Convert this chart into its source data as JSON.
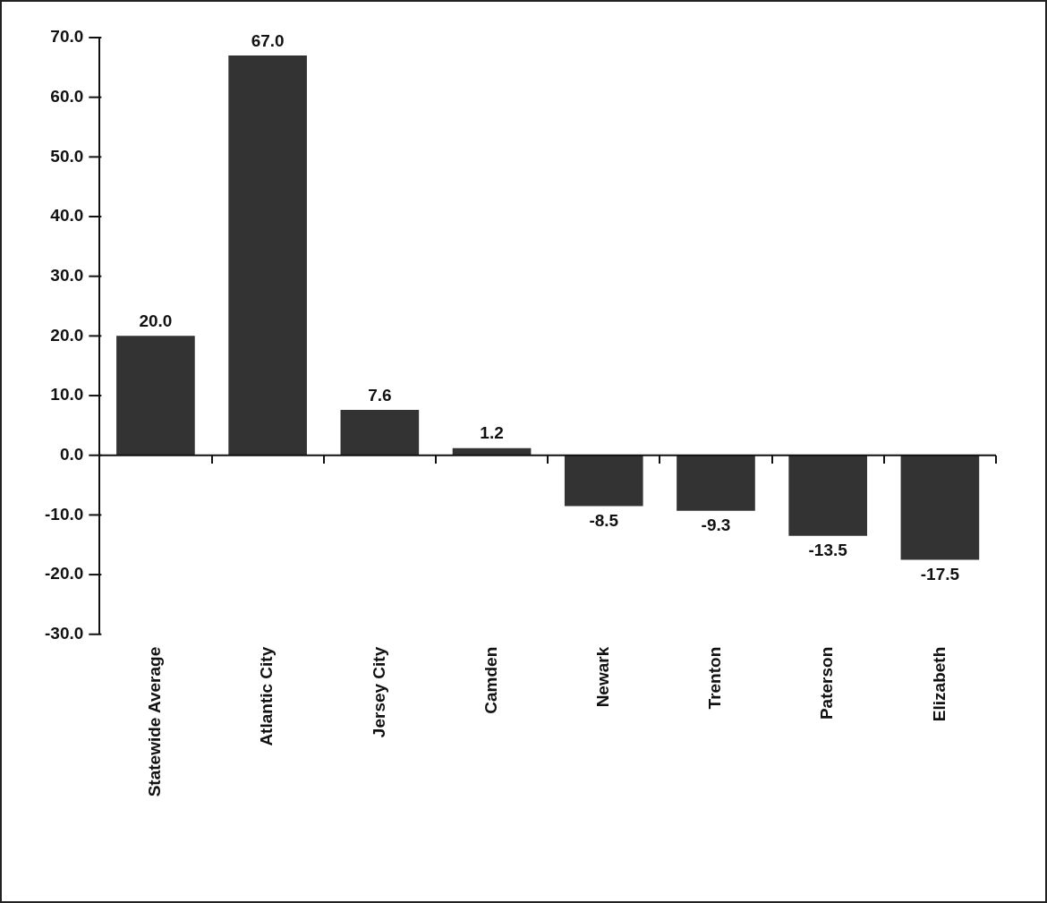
{
  "chart_data": {
    "type": "bar",
    "categories": [
      "Statewide Average",
      "Atlantic City",
      "Jersey City",
      "Camden",
      "Newark",
      "Trenton",
      "Paterson",
      "Elizabeth"
    ],
    "values": [
      20.0,
      67.0,
      7.6,
      1.2,
      -8.5,
      -9.3,
      -13.5,
      -17.5
    ],
    "value_labels": [
      "20.0",
      "67.0",
      "7.6",
      "1.2",
      "-8.5",
      "-9.3",
      "-13.5",
      "-17.5"
    ],
    "color": "#333333",
    "ylim": [
      -30,
      70
    ],
    "yticks": [
      {
        "value": -30,
        "label": "-30.0"
      },
      {
        "value": -20,
        "label": "-20.0"
      },
      {
        "value": -10,
        "label": "-10.0"
      },
      {
        "value": 0,
        "label": "0.0"
      },
      {
        "value": 10,
        "label": "10.0"
      },
      {
        "value": 20,
        "label": "20.0"
      },
      {
        "value": 30,
        "label": "30.0"
      },
      {
        "value": 40,
        "label": "40.0"
      },
      {
        "value": 50,
        "label": "50.0"
      },
      {
        "value": 60,
        "label": "60.0"
      },
      {
        "value": 70,
        "label": "70.0"
      }
    ],
    "ref_lines": [
      {
        "axis": "y",
        "value": 0,
        "color": "#111111"
      }
    ],
    "grid": false,
    "legend": false
  }
}
